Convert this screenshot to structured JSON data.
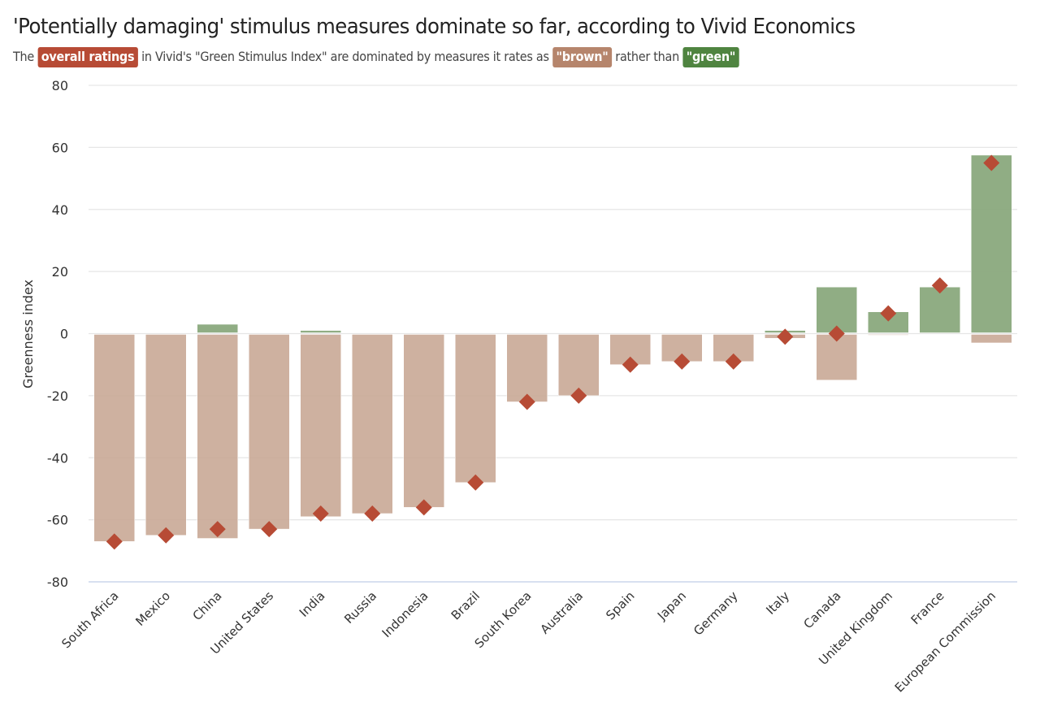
{
  "chart_data": {
    "type": "bar",
    "title": "'Potentially damaging' stimulus measures dominate so far, according to Vivid Economics",
    "subtitle": {
      "prefix": "The",
      "rating_tag": "overall ratings",
      "middle": "in Vivid's \"Green Stimulus Index\" are dominated by measures it rates as",
      "brown_tag": "\"brown\"",
      "between": "rather than",
      "green_tag": "\"green\""
    },
    "xlabel": "",
    "ylabel": "Greenness index",
    "ylim": [
      -80,
      80
    ],
    "yticks": [
      80,
      60,
      40,
      20,
      0,
      -20,
      -40,
      -60,
      -80
    ],
    "grid": true,
    "categories": [
      "South Africa",
      "Mexico",
      "China",
      "United States",
      "India",
      "Russia",
      "Indonesia",
      "Brazil",
      "South Korea",
      "Australia",
      "Spain",
      "Japan",
      "Germany",
      "Italy",
      "Canada",
      "United Kingdom",
      "France",
      "European Commission"
    ],
    "series": [
      {
        "name": "green",
        "kind": "bar",
        "color": "#8aa97d",
        "values": [
          0,
          0,
          3,
          0,
          1,
          0,
          0,
          0,
          0,
          0,
          0,
          0,
          0,
          1,
          15,
          7,
          15,
          57.5
        ]
      },
      {
        "name": "brown",
        "kind": "bar",
        "color": "#c9a896",
        "values": [
          -67,
          -65,
          -66,
          -63,
          -59,
          -58,
          -56,
          -48,
          -22,
          -20,
          -10,
          -9,
          -9,
          -1.5,
          -15,
          -0.5,
          0,
          -3
        ]
      },
      {
        "name": "overall rating",
        "kind": "marker",
        "color": "#b74b35",
        "values": [
          -67,
          -65,
          -63,
          -63,
          -58,
          -58,
          -56,
          -48,
          -22,
          -20,
          -10,
          -9,
          -9,
          -1,
          0,
          6.5,
          15.5,
          55
        ]
      }
    ],
    "colors": {
      "rating": "#b74b35",
      "brown": "#b6856c",
      "green": "#4f8440",
      "gridline": "#e6e6e6",
      "axis_line": "#ccd6eb"
    }
  }
}
